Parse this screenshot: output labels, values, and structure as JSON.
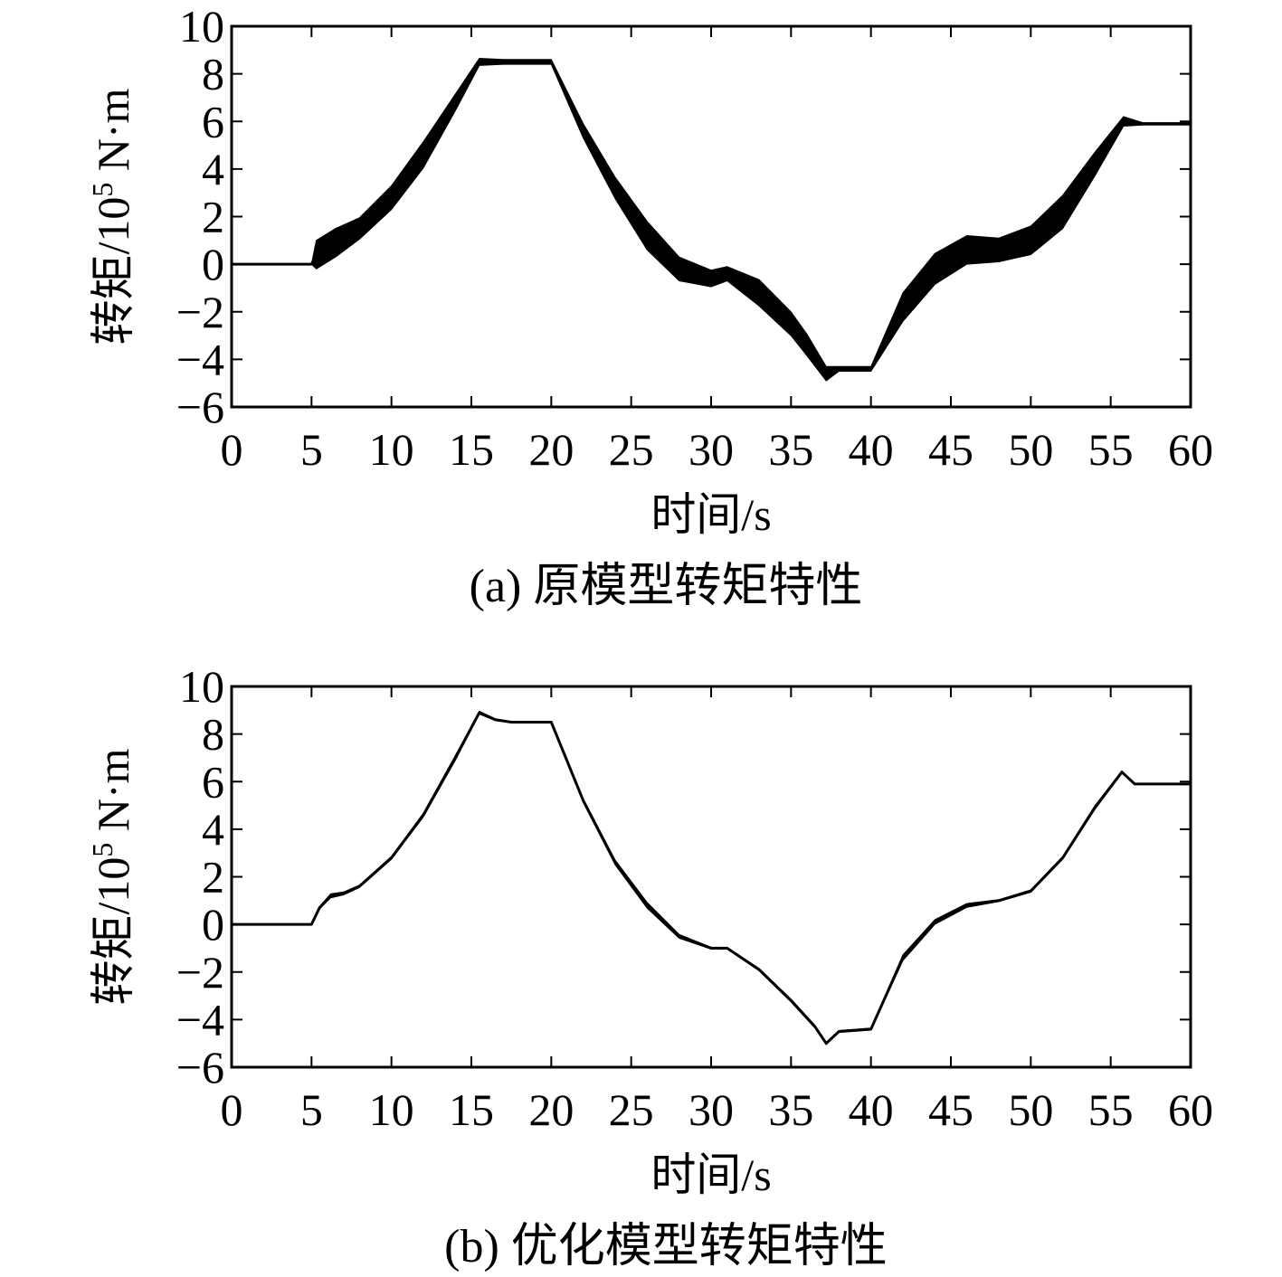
{
  "chart_data": [
    {
      "type": "line",
      "caption": "(a) 原模型转矩特性",
      "xlabel": "时间/s",
      "ylabel": {
        "main": "转矩/10",
        "sup": "5",
        "unit": " N·m"
      },
      "xlim": [
        0,
        60
      ],
      "ylim": [
        -6,
        10
      ],
      "xticks": [
        0,
        5,
        10,
        15,
        20,
        25,
        30,
        35,
        40,
        45,
        50,
        55,
        60
      ],
      "yticks": [
        -6,
        -4,
        -2,
        0,
        2,
        4,
        6,
        8,
        10
      ],
      "ytick_labels": [
        "−6",
        "−4",
        "−2",
        "0",
        "2",
        "4",
        "6",
        "8",
        "10"
      ],
      "grid": false,
      "series": [
        {
          "color": "#000000",
          "x": [
            0,
            5,
            5.3,
            6.5,
            8,
            10,
            12,
            14,
            15.5,
            17,
            20,
            22,
            24,
            26,
            28,
            30,
            31,
            33,
            35,
            36,
            37.2,
            38,
            40,
            42,
            44,
            46,
            48,
            50,
            52,
            54,
            55.8,
            57,
            60
          ],
          "y": [
            0,
            0,
            0.4,
            0.9,
            1.5,
            2.8,
            4.6,
            6.8,
            8.5,
            8.5,
            8.5,
            5.6,
            3.2,
            1.2,
            -0.2,
            -0.6,
            -0.4,
            -1.2,
            -2.5,
            -3.4,
            -4.6,
            -4.4,
            -4.4,
            -1.8,
            -0.2,
            0.6,
            0.6,
            1.0,
            2.2,
            4.2,
            6.0,
            5.9,
            5.9
          ],
          "band": [
            0,
            0,
            0.6,
            0.6,
            0.45,
            0.5,
            0.55,
            0.35,
            0.15,
            0.1,
            0.1,
            0.3,
            0.45,
            0.6,
            0.5,
            0.35,
            0.3,
            0.55,
            0.5,
            0.45,
            0.3,
            0.1,
            0.1,
            0.6,
            0.65,
            0.6,
            0.5,
            0.6,
            0.7,
            0.5,
            0.2,
            0.05,
            0.05
          ]
        }
      ]
    },
    {
      "type": "line",
      "caption": "(b) 优化模型转矩特性",
      "xlabel": "时间/s",
      "ylabel": {
        "main": "转矩/10",
        "sup": "5",
        "unit": " N·m"
      },
      "xlim": [
        0,
        60
      ],
      "ylim": [
        -6,
        10
      ],
      "xticks": [
        0,
        5,
        10,
        15,
        20,
        25,
        30,
        35,
        40,
        45,
        50,
        55,
        60
      ],
      "yticks": [
        -6,
        -4,
        -2,
        0,
        2,
        4,
        6,
        8,
        10
      ],
      "ytick_labels": [
        "−6",
        "−4",
        "−2",
        "0",
        "2",
        "4",
        "6",
        "8",
        "10"
      ],
      "grid": false,
      "series": [
        {
          "color": "#000000",
          "x": [
            0,
            5,
            5.5,
            6.2,
            7,
            8,
            10,
            12,
            14,
            15.5,
            16.5,
            17.5,
            20,
            22,
            24,
            26,
            28,
            30,
            31,
            33,
            35,
            36.5,
            37.2,
            38,
            40,
            42,
            44,
            46,
            48,
            50,
            52,
            54,
            55.7,
            56.5,
            60
          ],
          "y": [
            0,
            0,
            0.7,
            1.2,
            1.3,
            1.6,
            2.8,
            4.6,
            7.0,
            8.9,
            8.6,
            8.5,
            8.5,
            5.2,
            2.6,
            0.8,
            -0.5,
            -1.0,
            -1.0,
            -1.9,
            -3.2,
            -4.3,
            -5.0,
            -4.5,
            -4.4,
            -1.4,
            0.1,
            0.8,
            1.0,
            1.4,
            2.8,
            4.9,
            6.4,
            5.9,
            5.9
          ],
          "band": [
            0,
            0,
            0.05,
            0.08,
            0.06,
            0.05,
            0.06,
            0.08,
            0.1,
            0.06,
            0.04,
            0.03,
            0.03,
            0.08,
            0.1,
            0.12,
            0.08,
            0.04,
            0.03,
            0.05,
            0.06,
            0.06,
            0.05,
            0.04,
            0.04,
            0.12,
            0.1,
            0.08,
            0.04,
            0.05,
            0.06,
            0.08,
            0.05,
            0.02,
            0.02
          ]
        }
      ]
    }
  ]
}
